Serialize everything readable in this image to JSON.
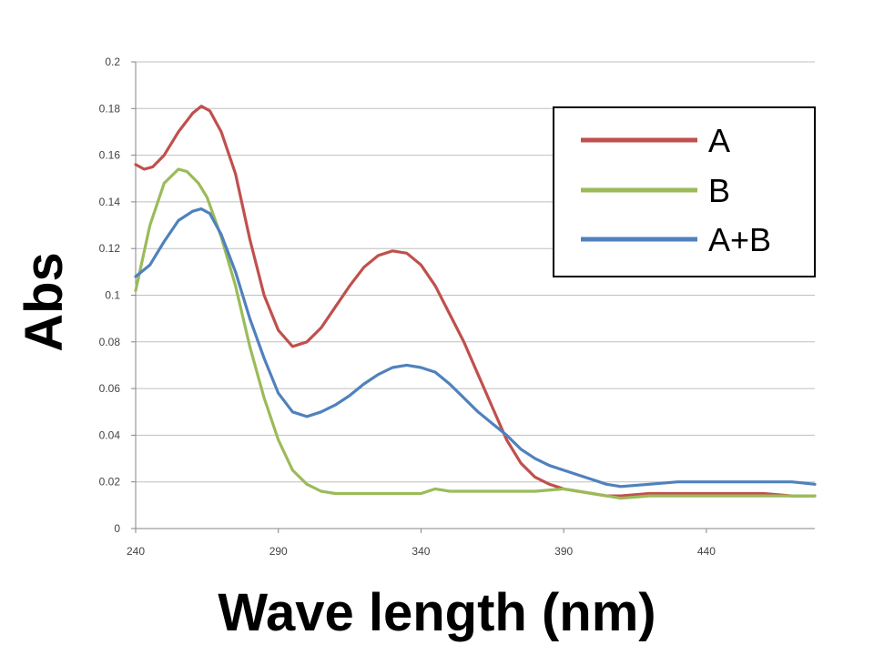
{
  "chart_data": {
    "type": "line",
    "title": "",
    "xlabel": "Wave length (nm)",
    "ylabel": "Abs",
    "xlim": [
      240,
      478
    ],
    "ylim": [
      0,
      0.2
    ],
    "xticks": [
      "240",
      "290",
      "340",
      "390",
      "440"
    ],
    "yticks": [
      "0",
      "0.02",
      "0.04",
      "0.06",
      "0.08",
      "0.1",
      "0.12",
      "0.14",
      "0.16",
      "0.18",
      "0.2"
    ],
    "grid": true,
    "legend_position": "top-right",
    "series": [
      {
        "name": "A",
        "color": "#c0504d",
        "x": [
          240,
          243,
          246,
          250,
          255,
          260,
          263,
          266,
          270,
          275,
          280,
          285,
          290,
          295,
          300,
          305,
          310,
          315,
          320,
          325,
          330,
          335,
          340,
          345,
          350,
          355,
          360,
          365,
          370,
          375,
          380,
          385,
          390,
          395,
          400,
          405,
          410,
          420,
          430,
          440,
          450,
          460,
          470,
          478
        ],
        "y": [
          0.156,
          0.154,
          0.155,
          0.16,
          0.17,
          0.178,
          0.181,
          0.179,
          0.17,
          0.152,
          0.124,
          0.1,
          0.085,
          0.078,
          0.08,
          0.086,
          0.095,
          0.104,
          0.112,
          0.117,
          0.119,
          0.118,
          0.113,
          0.104,
          0.092,
          0.08,
          0.066,
          0.052,
          0.038,
          0.028,
          0.022,
          0.019,
          0.017,
          0.016,
          0.015,
          0.014,
          0.014,
          0.015,
          0.015,
          0.015,
          0.015,
          0.015,
          0.014,
          0.014
        ]
      },
      {
        "name": "B",
        "color": "#9bbb59",
        "x": [
          240,
          245,
          250,
          255,
          258,
          262,
          265,
          270,
          275,
          280,
          285,
          290,
          295,
          300,
          305,
          310,
          320,
          330,
          340,
          345,
          350,
          360,
          370,
          380,
          390,
          395,
          400,
          405,
          410,
          420,
          430,
          440,
          450,
          460,
          470,
          478
        ],
        "y": [
          0.102,
          0.13,
          0.148,
          0.154,
          0.153,
          0.148,
          0.142,
          0.125,
          0.104,
          0.078,
          0.056,
          0.038,
          0.025,
          0.019,
          0.016,
          0.015,
          0.015,
          0.015,
          0.015,
          0.017,
          0.016,
          0.016,
          0.016,
          0.016,
          0.017,
          0.016,
          0.015,
          0.014,
          0.013,
          0.014,
          0.014,
          0.014,
          0.014,
          0.014,
          0.014,
          0.014
        ]
      },
      {
        "name": "A+B",
        "color": "#4f81bd",
        "x": [
          240,
          245,
          250,
          255,
          260,
          263,
          266,
          270,
          275,
          280,
          285,
          290,
          295,
          300,
          305,
          310,
          315,
          320,
          325,
          330,
          335,
          340,
          345,
          350,
          355,
          360,
          365,
          370,
          375,
          380,
          385,
          390,
          395,
          400,
          405,
          410,
          420,
          430,
          440,
          450,
          460,
          470,
          478
        ],
        "y": [
          0.108,
          0.113,
          0.123,
          0.132,
          0.136,
          0.137,
          0.135,
          0.126,
          0.11,
          0.09,
          0.073,
          0.058,
          0.05,
          0.048,
          0.05,
          0.053,
          0.057,
          0.062,
          0.066,
          0.069,
          0.07,
          0.069,
          0.067,
          0.062,
          0.056,
          0.05,
          0.045,
          0.04,
          0.034,
          0.03,
          0.027,
          0.025,
          0.023,
          0.021,
          0.019,
          0.018,
          0.019,
          0.02,
          0.02,
          0.02,
          0.02,
          0.02,
          0.019
        ]
      }
    ]
  }
}
